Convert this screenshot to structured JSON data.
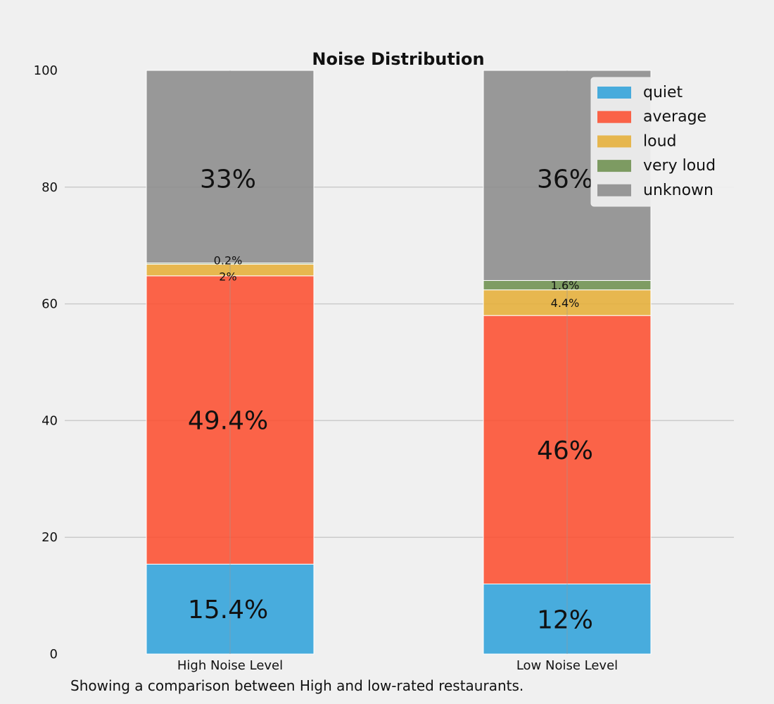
{
  "colors": {
    "background": "#f0f0f0",
    "grid": "#cbcbcb",
    "quiet": "#30a2da",
    "average": "#fc4f30",
    "loud": "#e5ae38",
    "very_loud": "#6d904f",
    "unknown": "#8b8b8b"
  },
  "caption": "Showing a comparison between High and low-rated restaurants.",
  "chart_data": {
    "type": "bar",
    "stacked": true,
    "title": "Noise Distribution",
    "xlabel": "",
    "ylabel": "",
    "categories": [
      "High Noise Level",
      "Low Noise Level"
    ],
    "ylim": [
      0,
      100
    ],
    "yticks": [
      "0",
      "20",
      "40",
      "60",
      "80",
      "100"
    ],
    "grid": true,
    "legend": "top-right",
    "series": [
      {
        "name": "quiet",
        "color": "#30a2da",
        "values": [
          15.4,
          12
        ],
        "labels": [
          "15.4%",
          "12%"
        ],
        "label_size": "large"
      },
      {
        "name": "average",
        "color": "#fc4f30",
        "values": [
          49.4,
          46
        ],
        "labels": [
          "49.4%",
          "46%"
        ],
        "label_size": "large"
      },
      {
        "name": "loud",
        "color": "#e5ae38",
        "values": [
          2,
          4.4
        ],
        "labels": [
          "2%",
          "4.4%"
        ],
        "label_size": "small"
      },
      {
        "name": "very loud",
        "color": "#6d904f",
        "values": [
          0.2,
          1.6
        ],
        "labels": [
          "0.2%",
          "1.6%"
        ],
        "label_size": "small"
      },
      {
        "name": "unknown",
        "color": "#8b8b8b",
        "values": [
          33,
          36
        ],
        "labels": [
          "33%",
          "36%"
        ],
        "label_size": "large"
      }
    ]
  }
}
